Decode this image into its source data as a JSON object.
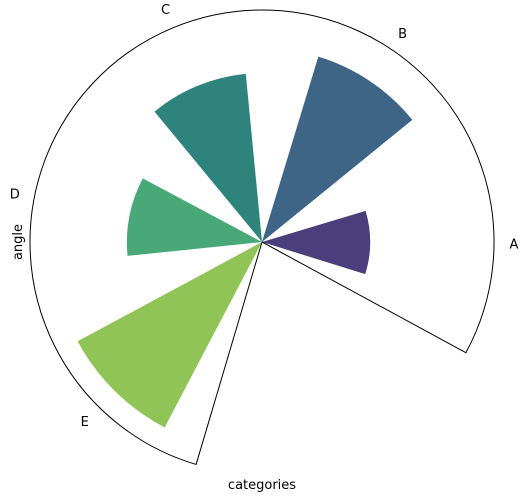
{
  "chart_data": {
    "type": "bar",
    "projection": "polar",
    "categories": [
      "A",
      "B",
      "C",
      "D",
      "E"
    ],
    "values": [
      4.8,
      8.6,
      7.5,
      6.0,
      9.3
    ],
    "colors": [
      "#4a3f7c",
      "#3e6586",
      "#2e847d",
      "#48a877",
      "#91c456"
    ],
    "xlabel": "categories",
    "ylabel": "angle",
    "rlim": [
      0,
      10.3
    ],
    "theta_range_deg": [
      -28.5,
      253.5
    ],
    "bar_width_deg": 34,
    "grid": false
  }
}
